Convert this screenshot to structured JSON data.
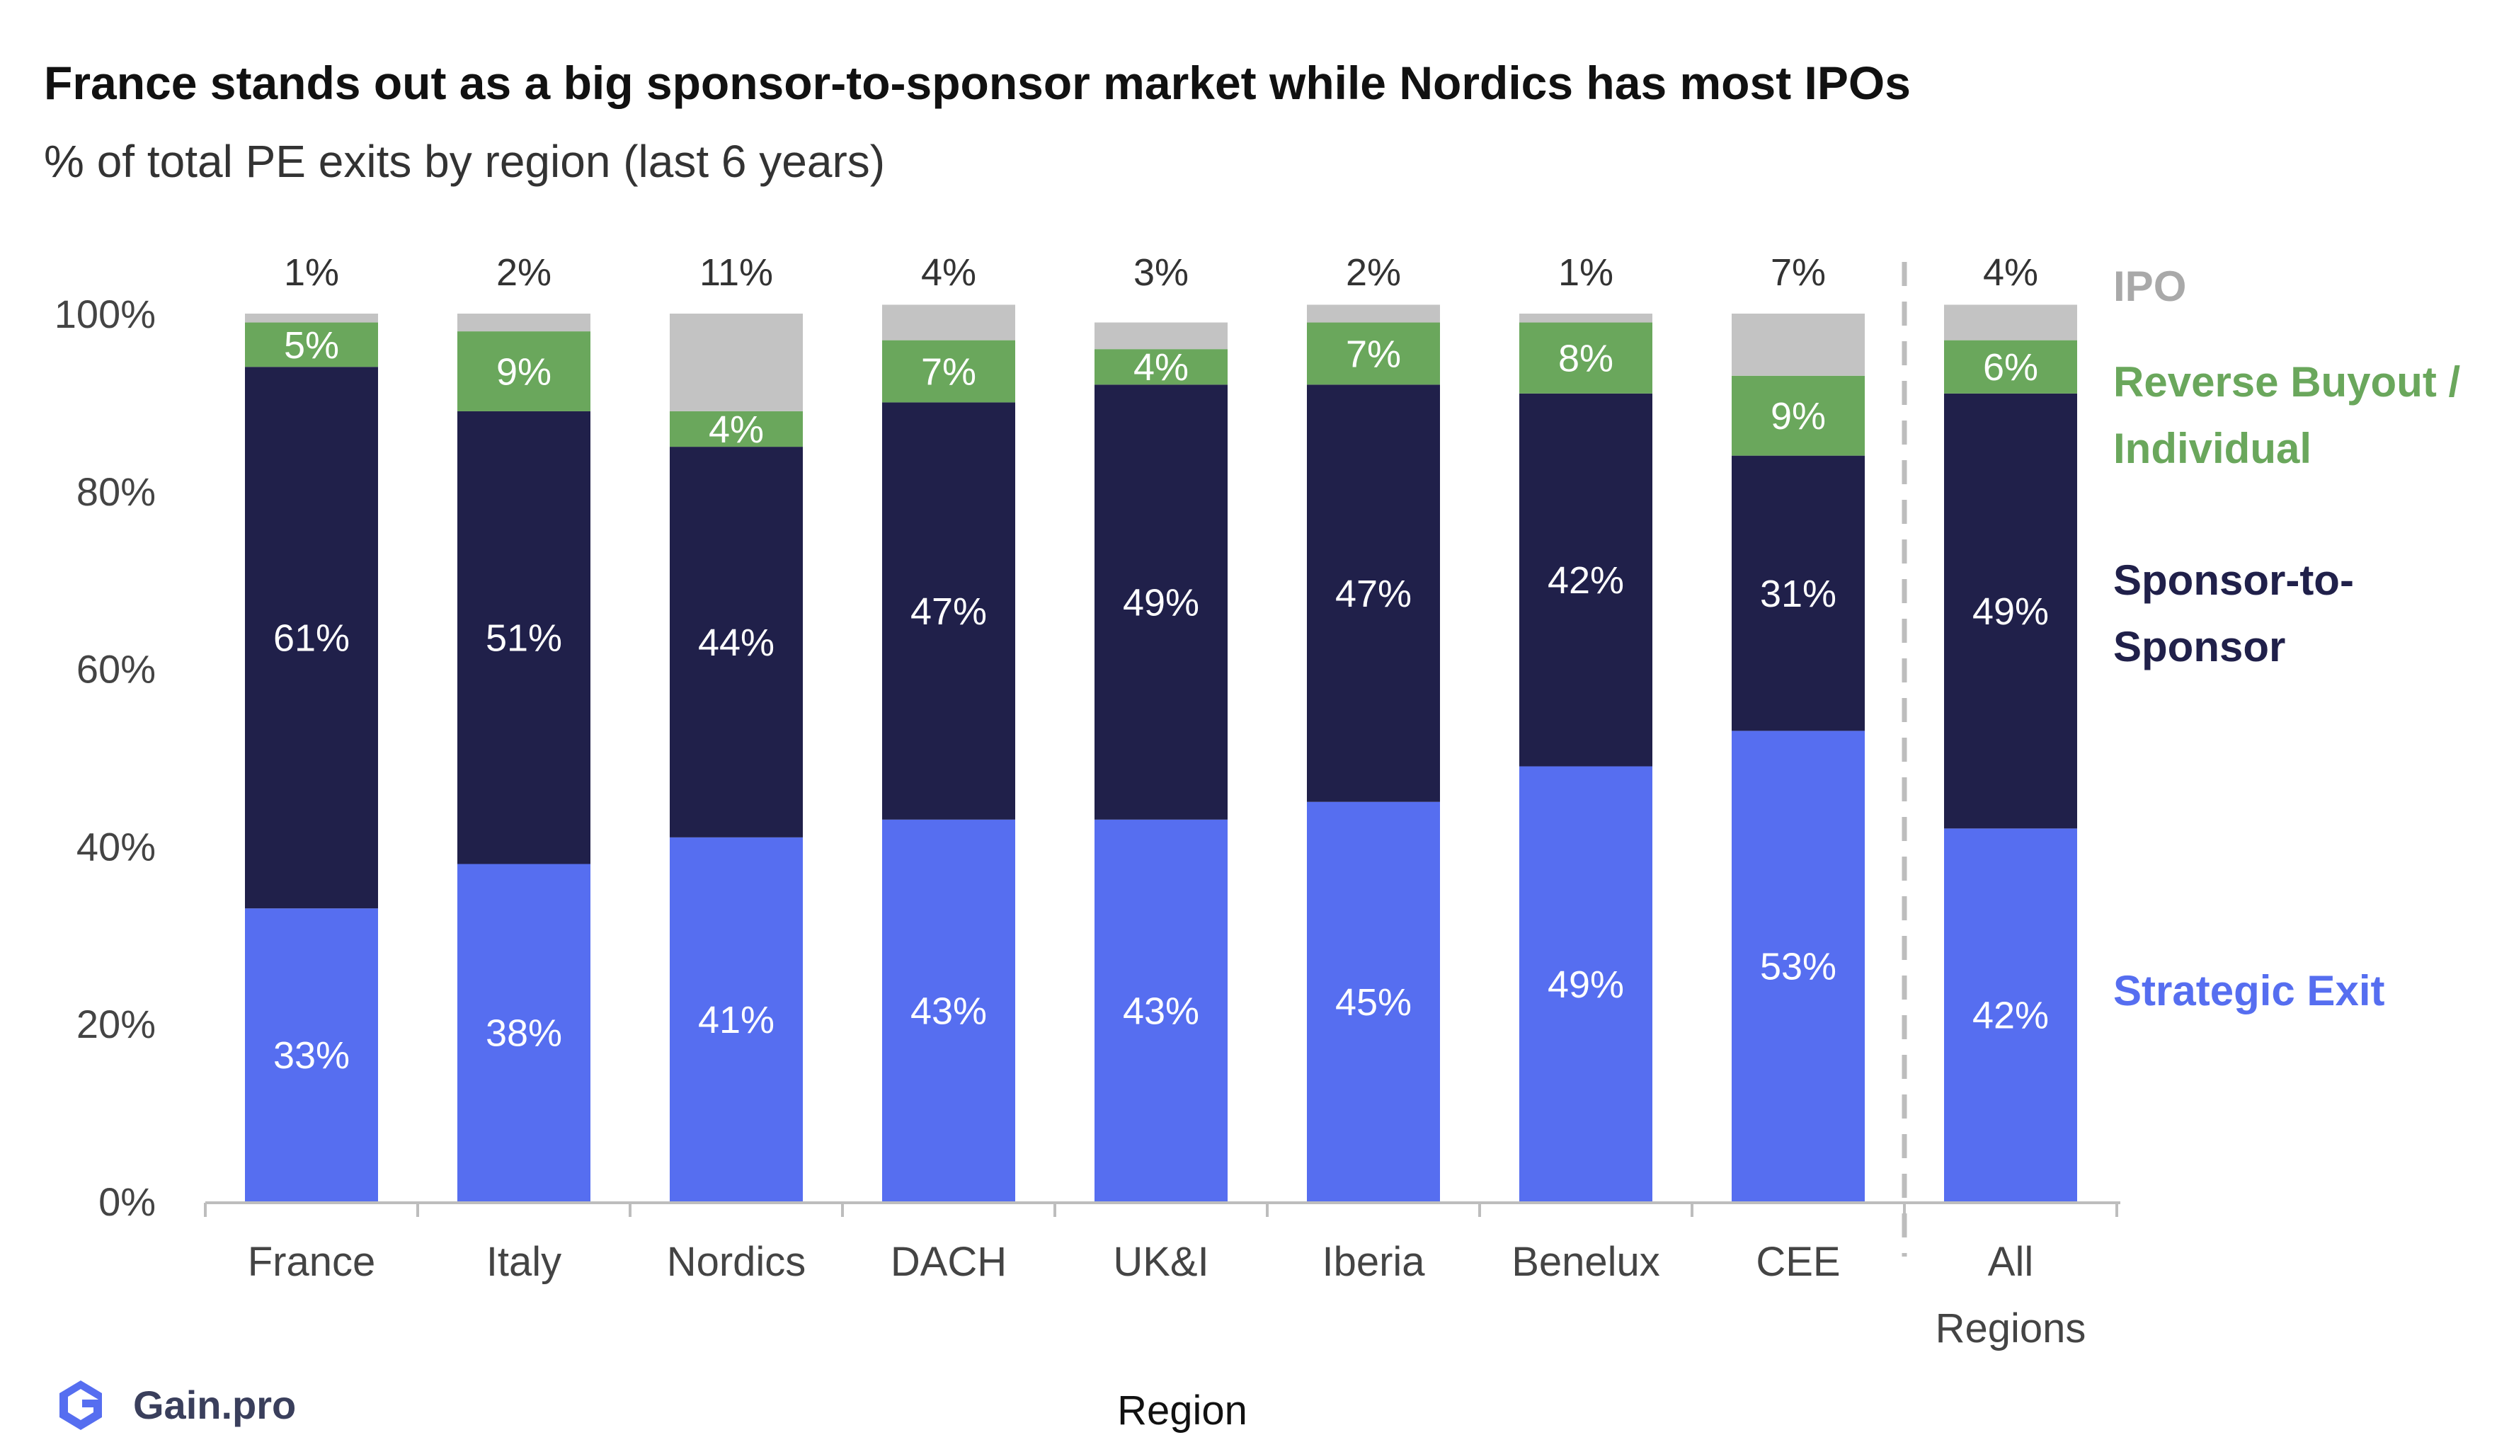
{
  "title": "France stands out as a big sponsor-to-sponsor market while Nordics has most IPOs",
  "subtitle": "% of total PE exits by region (last 6 years)",
  "logo": {
    "text": "Gain.pro",
    "icon": "gain-pro-logo-icon"
  },
  "colors": {
    "strategic_exit": "#566ef0",
    "sponsor_to_sponsor": "#20204a",
    "reverse_buyout": "#6aa75c",
    "ipo": "#c3c3c3",
    "legend_ipo": "#a9a9a9",
    "legend_reverse": "#6aa75c",
    "legend_sponsor": "#20204a",
    "legend_strategic": "#566ef0"
  },
  "chart_data": {
    "type": "bar",
    "stacked": true,
    "title": "France stands out as a big sponsor-to-sponsor market while Nordics has most IPOs",
    "subtitle": "% of total PE exits by region (last 6 years)",
    "xlabel": "Region",
    "ylabel": "",
    "ylim": [
      0,
      100
    ],
    "yticks": [
      "0%",
      "20%",
      "40%",
      "60%",
      "80%",
      "100%"
    ],
    "grid": false,
    "legend_position": "right",
    "categories": [
      "France",
      "Italy",
      "Nordics",
      "DACH",
      "UK&I",
      "Iberia",
      "Benelux",
      "CEE",
      "All Regions"
    ],
    "category_lines": [
      [
        "France"
      ],
      [
        "Italy"
      ],
      [
        "Nordics"
      ],
      [
        "DACH"
      ],
      [
        "UK&I"
      ],
      [
        "Iberia"
      ],
      [
        "Benelux"
      ],
      [
        "CEE"
      ],
      [
        "All",
        "Regions"
      ]
    ],
    "separator_before": "All Regions",
    "series": [
      {
        "name": "Strategic Exit",
        "values": [
          33,
          38,
          41,
          43,
          43,
          45,
          49,
          53,
          42
        ],
        "labels": [
          "33%",
          "38%",
          "41%",
          "43%",
          "43%",
          "45%",
          "49%",
          "53%",
          "42%"
        ]
      },
      {
        "name": "Sponsor-to-Sponsor",
        "values": [
          61,
          51,
          44,
          47,
          49,
          47,
          42,
          31,
          49
        ],
        "labels": [
          "61%",
          "51%",
          "44%",
          "47%",
          "49%",
          "47%",
          "42%",
          "31%",
          "49%"
        ]
      },
      {
        "name": "Reverse Buyout / Individual",
        "values": [
          5,
          9,
          4,
          7,
          4,
          7,
          8,
          9,
          6
        ],
        "labels": [
          "5%",
          "9%",
          "4%",
          "7%",
          "4%",
          "7%",
          "8%",
          "9%",
          "6%"
        ]
      },
      {
        "name": "IPO",
        "values": [
          1,
          2,
          11,
          4,
          3,
          2,
          1,
          7,
          4
        ],
        "labels": [
          "1%",
          "2%",
          "11%",
          "4%",
          "3%",
          "2%",
          "1%",
          "7%",
          "4%"
        ]
      }
    ],
    "legend": [
      {
        "lines": [
          "IPO"
        ],
        "series": "IPO"
      },
      {
        "lines": [
          "Reverse Buyout /",
          "Individual"
        ],
        "series": "Reverse Buyout / Individual"
      },
      {
        "lines": [
          "Sponsor-to-",
          "Sponsor"
        ],
        "series": "Sponsor-to-Sponsor"
      },
      {
        "lines": [
          "Strategic Exit"
        ],
        "series": "Strategic Exit"
      }
    ]
  }
}
